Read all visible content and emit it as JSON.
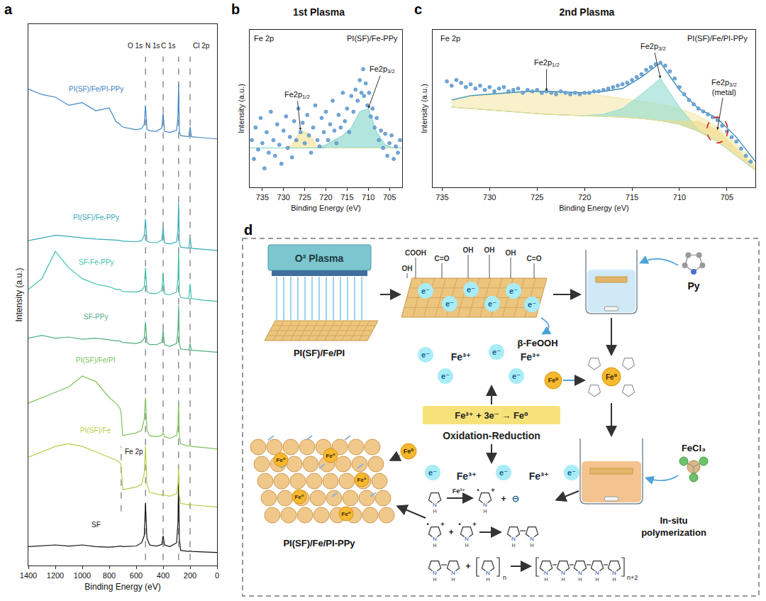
{
  "chart_data": [
    {
      "panel": "a",
      "type": "line",
      "xlabel": "Binding Energy (eV)",
      "ylabel": "Intensity (a.u.)",
      "xlim": [
        1400,
        0
      ],
      "xticks": [
        1400,
        1200,
        1000,
        800,
        600,
        400,
        200,
        0
      ],
      "ylim": [
        0,
        100
      ],
      "tick_labels": "x",
      "grid": false,
      "x": [
        1400,
        1300,
        1200,
        1100,
        1000,
        900,
        800,
        750,
        720,
        711,
        700,
        600,
        560,
        540,
        531,
        520,
        500,
        450,
        410,
        400,
        390,
        350,
        300,
        290,
        285,
        280,
        270,
        210,
        200,
        190,
        100,
        0
      ],
      "series": [
        {
          "name": "SF",
          "color": "#111111",
          "values": [
            3.5,
            3.6,
            3.8,
            3.6,
            3.8,
            3.5,
            3.4,
            3.5,
            3.6,
            3.6,
            3.5,
            3.6,
            4.2,
            5.5,
            11.5,
            5,
            3.8,
            3.6,
            3.9,
            5.5,
            3.8,
            3.5,
            4.2,
            8,
            16.5,
            5,
            2.8,
            2.6,
            2.7,
            2.6,
            2.5,
            2.4
          ]
        },
        {
          "name": "PI(SF)/Fe",
          "color": "#b5cf4a",
          "values": [
            20,
            21,
            22,
            22.5,
            22,
            21,
            20,
            19.5,
            19,
            18.5,
            14,
            14.5,
            15,
            17,
            22,
            15,
            13.5,
            13.2,
            13,
            13.4,
            13,
            12.8,
            13.3,
            15,
            18,
            13,
            11.5,
            11.2,
            11.5,
            11.2,
            11,
            10.8
          ]
        },
        {
          "name": "PI(SF)/Fe/PI",
          "color": "#7cc45e",
          "values": [
            30,
            31,
            32,
            33,
            35,
            34,
            31,
            30,
            29,
            28,
            24,
            24.5,
            25,
            27,
            31,
            25,
            24,
            23.8,
            24,
            24.5,
            23.8,
            23.5,
            24,
            26,
            30,
            24,
            22.5,
            22,
            22.3,
            22,
            21.8,
            21.5
          ]
        },
        {
          "name": "SF-PPy",
          "color": "#52b07e",
          "values": [
            42,
            42.5,
            42,
            42.2,
            41.8,
            42,
            41.7,
            41.5,
            41.5,
            41.3,
            41.2,
            41,
            41.3,
            42,
            45,
            41.2,
            40.8,
            40.8,
            41.2,
            43.5,
            40.8,
            40.5,
            41,
            43.5,
            48,
            41,
            40,
            39.8,
            41,
            39.8,
            39.6,
            39.4
          ]
        },
        {
          "name": "SF-Fe-PPy",
          "color": "#3fbfa8",
          "values": [
            51,
            53,
            58,
            55,
            53,
            52,
            51.5,
            51,
            51,
            50.8,
            50.6,
            50.5,
            50.8,
            51.5,
            55,
            50.6,
            50.3,
            50.2,
            50.8,
            54,
            50.2,
            50,
            50.5,
            53,
            58,
            50.3,
            49.5,
            49.3,
            52,
            49.3,
            49,
            48.8
          ]
        },
        {
          "name": "PI(SF)/Fe-PPy",
          "color": "#35abbb",
          "values": [
            60,
            60.5,
            61,
            60.8,
            60.5,
            60.3,
            60.2,
            60.1,
            60,
            60,
            59.9,
            59.8,
            60,
            61,
            64,
            59.9,
            59.7,
            59.6,
            60.1,
            62.5,
            59.6,
            59.4,
            59.8,
            62,
            67,
            59.6,
            58.8,
            58.6,
            60.5,
            58.6,
            58.4,
            58.2
          ]
        },
        {
          "name": "PI(SF)/Fe/PI-PPy",
          "color": "#3f84c4",
          "values": [
            88,
            87,
            86.5,
            85,
            85.5,
            84,
            84.5,
            82,
            81.5,
            81.2,
            81,
            80.5,
            80.7,
            81.5,
            85,
            80.6,
            80.3,
            80.2,
            80.8,
            83.5,
            80.2,
            80,
            80.4,
            83,
            89,
            80.2,
            79.4,
            79.2,
            81,
            79.2,
            79,
            78.8
          ]
        }
      ],
      "peaks": [
        {
          "label": "O 1s",
          "x": 531
        },
        {
          "label": "N 1s",
          "x": 400
        },
        {
          "label": "C 1s",
          "x": 285
        },
        {
          "label": "Cl 2p",
          "x": 200
        }
      ],
      "substrate_peaks": [
        {
          "label": "Fe 2p",
          "x": 711
        }
      ]
    },
    {
      "panel": "b",
      "type": "scatter",
      "title": "1st Plasma",
      "corner_labels": [
        "Fe 2p",
        "PI(SF)/Fe-PPy"
      ],
      "xlabel": "Binding Energy (eV)",
      "ylabel": "Intensity (a.u.)",
      "xlim": [
        738,
        702
      ],
      "xticks": [
        735,
        730,
        725,
        720,
        715,
        710,
        705
      ],
      "ylim": [
        0,
        100
      ],
      "tick_labels": "x",
      "grid": false,
      "points": {
        "color": "#6fa8dc",
        "marker": "circle",
        "x": [
          737.5,
          737,
          736.6,
          736,
          735.4,
          735,
          734.5,
          734,
          733.5,
          733,
          732.4,
          732,
          731.5,
          731,
          730.5,
          730,
          729.4,
          729,
          728.5,
          728,
          727.5,
          727,
          726.5,
          726,
          725.5,
          725,
          724.4,
          724,
          723.5,
          723,
          722.5,
          722,
          721.5,
          721,
          720.5,
          720,
          719.5,
          719,
          718.4,
          718,
          717.5,
          717,
          716.5,
          716,
          715.5,
          715,
          714.5,
          714,
          713.5,
          713,
          712.5,
          712,
          711.6,
          711.2,
          711,
          710.6,
          710.2,
          709.8,
          709.4,
          709,
          708.5,
          708,
          707.5,
          707,
          706.5,
          706,
          705.5,
          705,
          704.5,
          704,
          703.5,
          703,
          702.5
        ],
        "values": [
          30,
          18,
          38,
          24,
          44,
          28,
          12,
          35,
          22,
          48,
          30,
          20,
          40,
          27,
          15,
          36,
          45,
          25,
          32,
          19,
          42,
          30,
          50,
          35,
          41,
          28,
          46,
          33,
          22,
          38,
          52,
          30,
          26,
          44,
          35,
          48,
          30,
          40,
          55,
          36,
          28,
          46,
          38,
          60,
          42,
          50,
          35,
          58,
          48,
          62,
          55,
          68,
          60,
          75,
          58,
          66,
          52,
          60,
          45,
          50,
          38,
          44,
          30,
          36,
          25,
          34,
          20,
          28,
          33,
          18,
          26,
          22,
          30
        ]
      },
      "fit_x": [
        738,
        736,
        734,
        732,
        730,
        728,
        726,
        724,
        722,
        720,
        718,
        716,
        714,
        712,
        710,
        708,
        706,
        704,
        702
      ],
      "background": {
        "color": "#5bb0a8",
        "values": [
          25,
          25,
          25,
          25,
          25,
          25,
          25,
          25,
          25,
          25,
          25,
          25,
          25,
          25,
          25,
          25,
          25,
          25,
          25
        ]
      },
      "components": [
        {
          "label": {
            "main": "Fe2p",
            "sub": "1/2"
          },
          "color": "#f1df8c",
          "values": [
            25,
            25,
            25,
            25,
            25,
            27,
            36,
            34,
            26,
            25,
            25,
            25,
            25,
            25,
            25,
            25,
            25,
            25,
            25
          ]
        },
        {
          "label": {
            "main": "Fe2p",
            "sub": "3/2"
          },
          "color": "#7fd3c6",
          "values": [
            25,
            25,
            25,
            25,
            25,
            25,
            25,
            25,
            25,
            27,
            30,
            33,
            38,
            48,
            50,
            35,
            27,
            25,
            25
          ]
        }
      ]
    },
    {
      "panel": "c",
      "type": "scatter",
      "title": "2nd Plasma",
      "corner_labels": [
        "Fe 2p",
        "PI(SF)/Fe/PI-PPy"
      ],
      "xlabel": "Binding Energy (eV)",
      "ylabel": "Intensity (a.u.)",
      "xlim": [
        736,
        702
      ],
      "xticks": [
        735,
        730,
        725,
        720,
        715,
        710,
        705
      ],
      "ylim": [
        0,
        110
      ],
      "tick_labels": "x",
      "grid": false,
      "points": {
        "color": "#6fa8dc",
        "marker": "circle",
        "x": [
          734.5,
          734,
          733.5,
          733,
          732.5,
          732,
          731.5,
          731,
          730.5,
          730,
          729.5,
          729,
          728.5,
          728,
          727.5,
          727,
          726.5,
          726,
          725.5,
          725,
          724.5,
          724,
          723.5,
          723,
          722.5,
          722,
          721.5,
          721,
          720.5,
          720,
          719.5,
          719,
          718.5,
          718,
          717.5,
          717,
          716.5,
          716,
          715.5,
          715,
          714.5,
          714,
          713.5,
          713,
          712.5,
          712,
          711.5,
          711,
          710.5,
          710,
          709.5,
          709,
          708.5,
          708,
          707.5,
          707,
          706.5,
          706,
          705.5,
          705,
          704.5,
          704,
          703.5,
          703,
          702.5
        ],
        "values": [
          74,
          71,
          75,
          73,
          70,
          72,
          69,
          71,
          68,
          70,
          67,
          69,
          70,
          67,
          68,
          69,
          66,
          68,
          67,
          68,
          66,
          67,
          66,
          65,
          67,
          66,
          65,
          66,
          65,
          66,
          66,
          67,
          67,
          68,
          69,
          70,
          71,
          72,
          73,
          75,
          77,
          79,
          82,
          84,
          86,
          87,
          85,
          81,
          76,
          70,
          65,
          61,
          58,
          55,
          53,
          51,
          49,
          47,
          43,
          39,
          35,
          32,
          27,
          22,
          18
        ]
      },
      "fit_x": [
        734,
        732,
        730,
        728,
        726,
        724,
        722,
        720,
        718,
        716,
        714,
        712,
        710,
        708,
        706,
        704,
        702
      ],
      "background": {
        "color": "#9fcf9a",
        "values": [
          56,
          55,
          54,
          53,
          52,
          51,
          50.5,
          50,
          49.5,
          49,
          48,
          46.5,
          44,
          39,
          32,
          22,
          12
        ]
      },
      "components": [
        {
          "label": {
            "main": "Fe2p",
            "sub": "1/2"
          },
          "color": "#f3e7a8",
          "values": [
            61,
            64,
            65,
            66,
            67,
            67,
            66.5,
            65.5,
            64,
            62,
            60,
            58,
            55,
            50,
            42,
            30,
            16
          ]
        },
        {
          "label": {
            "main": "Fe2p",
            "sub": "3/2"
          },
          "color": "#8fdccf",
          "values": [
            56,
            55,
            54,
            53,
            52,
            51,
            50.5,
            50,
            51,
            55,
            65,
            76,
            56,
            40,
            32,
            22,
            12
          ]
        },
        {
          "label": {
            "main": "Fe2p",
            "sub": "3/2",
            "note": "(metal)"
          },
          "color": "#f0dc8a",
          "values": [
            56,
            55,
            54,
            53,
            52,
            51,
            50.5,
            50,
            49.5,
            49,
            48,
            46.5,
            46,
            46,
            40,
            27,
            13
          ]
        }
      ],
      "envelope": {
        "color": "#3b8fb5",
        "values": [
          61,
          64,
          65,
          66,
          67,
          67,
          66.5,
          66,
          67,
          69,
          77,
          87,
          68,
          55,
          48,
          35,
          18
        ]
      }
    }
  ],
  "diagram": {
    "letter": "d",
    "plasma_label": "O² Plasma",
    "substrate_label": "PI(SF)/Fe/PI",
    "groups": [
      "COOH",
      "C=O",
      "OH",
      "OH",
      "OH",
      "C=O",
      "OH"
    ],
    "electron": "e⁻",
    "ion": "Fe³⁺",
    "metal": "Fe⁰",
    "byproduct": "β-FeOOH",
    "monomer": "Py",
    "reaction": "Fe³⁺ + 3e⁻ → Fe⁰",
    "reaction_name": "Oxidation-Reduction",
    "oxidant": "FeCl₃",
    "step": "In-situ polymerization",
    "product_label": "PI(SF)/Fe/PI-PPy",
    "scheme": {
      "n_atom": "N",
      "h_atom": "H",
      "plus": "+",
      "radical": "•",
      "minus": "⊖",
      "repeat": "n",
      "repeat_product": "n+2"
    }
  }
}
